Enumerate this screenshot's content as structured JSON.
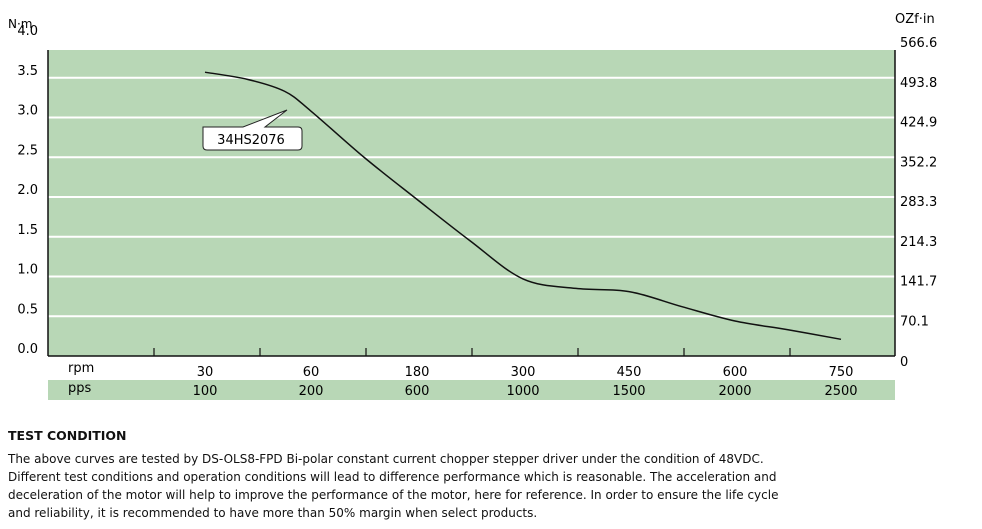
{
  "chart_data": {
    "type": "line",
    "ylabel": "N·m",
    "ylabel_right": "OZf·in",
    "ylim": [
      0,
      4.0
    ],
    "yticks": [
      "0.0",
      "0.5",
      "1.0",
      "1.5",
      "2.0",
      "2.5",
      "3.0",
      "3.5",
      "4.0"
    ],
    "yticks_right": [
      "0",
      "70.1",
      "141.7",
      "214.3",
      "283.3",
      "352.2",
      "424.9",
      "493.8",
      "566.6"
    ],
    "x_row_labels": [
      "rpm",
      "pps"
    ],
    "rpm": [
      "30",
      "60",
      "180",
      "300",
      "450",
      "600",
      "750"
    ],
    "pps": [
      "100",
      "200",
      "600",
      "1000",
      "1500",
      "2000",
      "2500"
    ],
    "series": [
      {
        "name": "34HS2076",
        "x_index": [
          0,
          0.4,
          0.75,
          1,
          1.5,
          2,
          2.5,
          3,
          3.5,
          4,
          4.5,
          5,
          5.5,
          6
        ],
        "values": [
          3.57,
          3.48,
          3.33,
          3.08,
          2.5,
          1.97,
          1.45,
          0.97,
          0.85,
          0.81,
          0.62,
          0.44,
          0.33,
          0.21
        ]
      }
    ],
    "grid": true,
    "colors": {
      "plot_bg": "#b8d7b6",
      "grid": "#ffffff",
      "line": "#111111"
    }
  },
  "test": {
    "title": "TEST CONDITION",
    "lines": [
      "The above curves are tested by DS-OLS8-FPD Bi-polar constant current chopper stepper driver under the condition of 48VDC.",
      "Different test conditions and operation conditions will lead to difference performance which is reasonable. The acceleration and",
      "deceleration of the motor will help to improve the performance of the motor, here for reference. In order to ensure the life cycle",
      "and reliability, it is recommended to have more than 50% margin when select products."
    ]
  }
}
